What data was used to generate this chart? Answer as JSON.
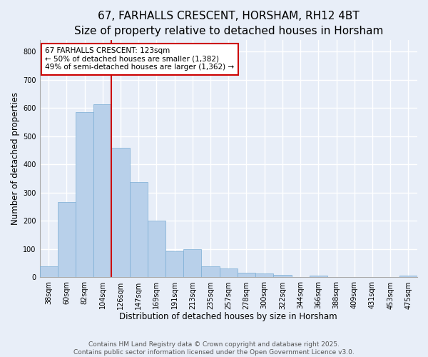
{
  "title": "67, FARHALLS CRESCENT, HORSHAM, RH12 4BT",
  "subtitle": "Size of property relative to detached houses in Horsham",
  "xlabel": "Distribution of detached houses by size in Horsham",
  "ylabel": "Number of detached properties",
  "categories": [
    "38sqm",
    "60sqm",
    "82sqm",
    "104sqm",
    "126sqm",
    "147sqm",
    "169sqm",
    "191sqm",
    "213sqm",
    "235sqm",
    "257sqm",
    "278sqm",
    "300sqm",
    "322sqm",
    "344sqm",
    "366sqm",
    "388sqm",
    "409sqm",
    "431sqm",
    "453sqm",
    "475sqm"
  ],
  "values": [
    38,
    268,
    586,
    612,
    458,
    337,
    202,
    93,
    101,
    38,
    31,
    16,
    15,
    10,
    0,
    5,
    2,
    0,
    0,
    0,
    5
  ],
  "bar_color": "#b8d0ea",
  "bar_edge_color": "#7aadd4",
  "bar_width": 1.0,
  "vline_x": 3.5,
  "vline_color": "#cc0000",
  "annotation_line1": "67 FARHALLS CRESCENT: 123sqm",
  "annotation_line2": "← 50% of detached houses are smaller (1,382)",
  "annotation_line3": "49% of semi-detached houses are larger (1,362) →",
  "annotation_box_color": "#ffffff",
  "annotation_box_edge_color": "#cc0000",
  "ylim": [
    0,
    840
  ],
  "yticks": [
    0,
    100,
    200,
    300,
    400,
    500,
    600,
    700,
    800
  ],
  "bg_color": "#e8eef8",
  "plot_bg_color": "#e8eef8",
  "grid_color": "#ffffff",
  "footer": "Contains HM Land Registry data © Crown copyright and database right 2025.\nContains public sector information licensed under the Open Government Licence v3.0.",
  "title_fontsize": 11,
  "xlabel_fontsize": 8.5,
  "ylabel_fontsize": 8.5,
  "tick_fontsize": 7,
  "annotation_fontsize": 7.5,
  "footer_fontsize": 6.5
}
